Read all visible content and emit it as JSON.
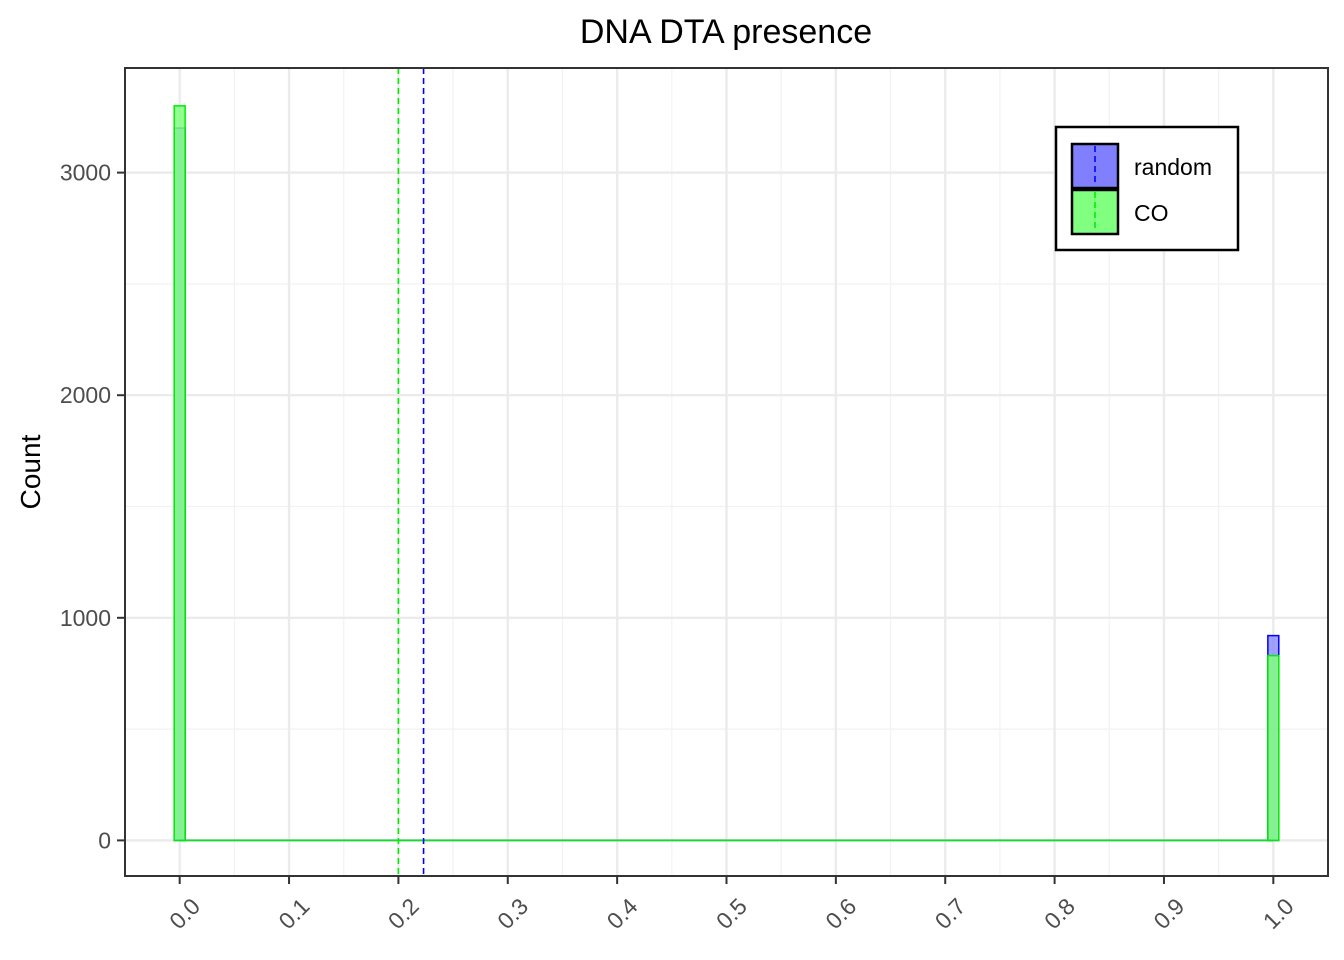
{
  "chart_data": {
    "type": "bar",
    "title": "DNA DTA presence",
    "xlabel": "",
    "ylabel": "Count",
    "xlim": [
      -0.05,
      1.05
    ],
    "ylim": [
      -160,
      3470
    ],
    "x_ticks": [
      0.0,
      0.1,
      0.2,
      0.3,
      0.4,
      0.5,
      0.6,
      0.7,
      0.8,
      0.9,
      1.0
    ],
    "x_tick_labels": [
      "0.0",
      "0.1",
      "0.2",
      "0.3",
      "0.4",
      "0.5",
      "0.6",
      "0.7",
      "0.8",
      "0.9",
      "1.0"
    ],
    "y_ticks": [
      0,
      1000,
      2000,
      3000
    ],
    "y_tick_labels": [
      "0",
      "1000",
      "2000",
      "3000"
    ],
    "grid": true,
    "legend_position": "top-right",
    "series": [
      {
        "name": "random",
        "color": "#0000ff",
        "fill": "#8080ff",
        "x": [
          0.0,
          1.0
        ],
        "values": [
          3200,
          920
        ],
        "mean": 0.223
      },
      {
        "name": "CO",
        "color": "#00ee00",
        "fill": "#80ff80",
        "x": [
          0.0,
          1.0
        ],
        "values": [
          3300,
          830
        ],
        "mean": 0.2
      }
    ]
  }
}
